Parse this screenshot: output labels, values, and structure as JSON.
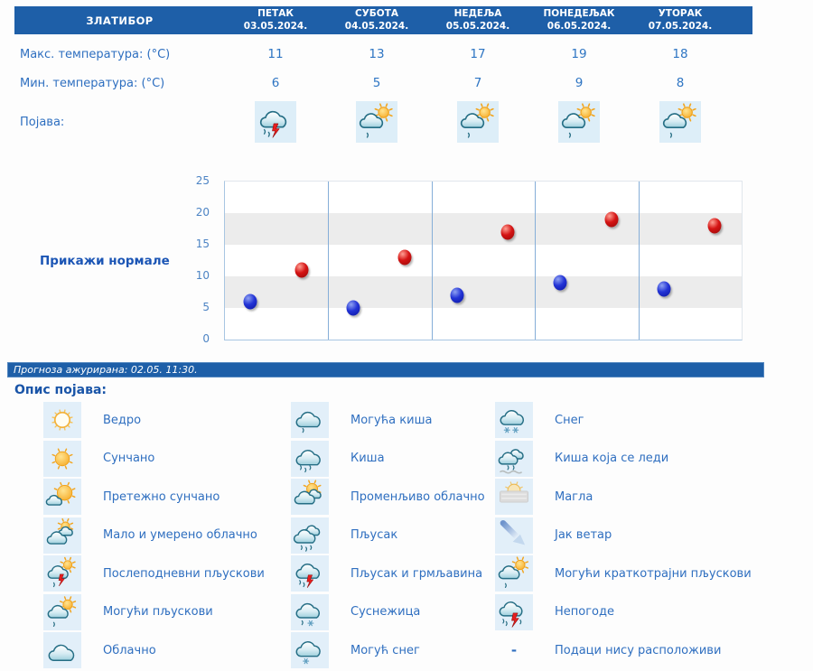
{
  "table": {
    "location": "ЗЛАТИБОР",
    "days": [
      {
        "name": "ПЕТАК",
        "date": "03.05.2024."
      },
      {
        "name": "СУБОТА",
        "date": "04.05.2024."
      },
      {
        "name": "НЕДЕЉА",
        "date": "05.05.2024."
      },
      {
        "name": "ПОНЕДЕЉАК",
        "date": "06.05.2024."
      },
      {
        "name": "УТОРАК",
        "date": "07.05.2024."
      }
    ],
    "max_label": "Макс. температура: (°C)",
    "min_label": "Мин. температура: (°C)",
    "phenomena_label": "Појава:",
    "max_values": [
      11,
      13,
      17,
      19,
      18
    ],
    "min_values": [
      6,
      5,
      7,
      9,
      8
    ],
    "phenomena_icons": [
      "shower-thunder-icon",
      "short-showers-icon",
      "short-showers-icon",
      "short-showers-icon",
      "short-showers-icon"
    ]
  },
  "chart": {
    "normals_link": "Прикажи нормале"
  },
  "chart_data": {
    "type": "scatter",
    "categories": [
      "03.05.2024.",
      "04.05.2024.",
      "05.05.2024.",
      "06.05.2024.",
      "07.05.2024."
    ],
    "series": [
      {
        "name": "Макс. температура (°C)",
        "color": "#d31414",
        "values": [
          11,
          13,
          17,
          19,
          18
        ]
      },
      {
        "name": "Мин. температура (°C)",
        "color": "#1a2bd0",
        "values": [
          6,
          5,
          7,
          9,
          8
        ]
      }
    ],
    "yticks": [
      0,
      5,
      10,
      15,
      20,
      25
    ],
    "ylim": [
      0,
      25
    ],
    "bands": [
      [
        5,
        10
      ],
      [
        15,
        20
      ]
    ],
    "grid": "vertical-day-dividers",
    "legend_position": "none",
    "title": "",
    "xlabel": "",
    "ylabel": ""
  },
  "update_bar": {
    "text": "Прогноза ажурирана:  02.05. 11:30."
  },
  "legend": {
    "heading": "Опис појава:",
    "items": [
      {
        "icon": "clear-icon",
        "label": "Ведро"
      },
      {
        "icon": "possible-rain-icon",
        "label": "Могућа киша"
      },
      {
        "icon": "snow-icon",
        "label": "Снег"
      },
      {
        "icon": "sunny-icon",
        "label": "Сунчано"
      },
      {
        "icon": "rain-icon",
        "label": "Киша"
      },
      {
        "icon": "freezing-rain-icon",
        "label": "Киша која се леди"
      },
      {
        "icon": "mostly-sunny-icon",
        "label": "Претежно сунчано"
      },
      {
        "icon": "variable-clouds-icon",
        "label": "Променљиво облачно"
      },
      {
        "icon": "fog-icon",
        "label": "Магла"
      },
      {
        "icon": "partly-cloudy-icon",
        "label": "Мало и умерено облачно"
      },
      {
        "icon": "heavy-shower-icon",
        "label": "Пљусак"
      },
      {
        "icon": "strong-wind-icon",
        "label": "Јак ветар"
      },
      {
        "icon": "afternoon-showers-icon",
        "label": "Послеподневни пљускови"
      },
      {
        "icon": "shower-thunder-icon",
        "label": "Пљусак и грмљавина"
      },
      {
        "icon": "short-showers-icon",
        "label": "Могући краткотрајни пљускови"
      },
      {
        "icon": "possible-showers-icon",
        "label": "Могући пљускови"
      },
      {
        "icon": "sleet-icon",
        "label": "Суснежица"
      },
      {
        "icon": "storm-icon",
        "label": "Непогоде"
      },
      {
        "icon": "cloudy-icon",
        "label": "Облачно"
      },
      {
        "icon": "possible-snow-icon",
        "label": "Могућ снег"
      },
      {
        "icon": "no-data-icon",
        "label": "Подаци нису расположиви"
      }
    ]
  },
  "colors": {
    "header_bg": "#1e5fa8",
    "label_text": "#2e6fc0",
    "value_text": "#2e75c3",
    "link_text": "#1b55b5",
    "tick_text": "#4d84c4",
    "band": "#ececec",
    "divider": "#85aed8",
    "dot_max": "#d31414",
    "dot_min": "#1a2bd0",
    "icon_box_bg": "#e2eff9",
    "update_bar_bg": "#1e5fa8"
  }
}
